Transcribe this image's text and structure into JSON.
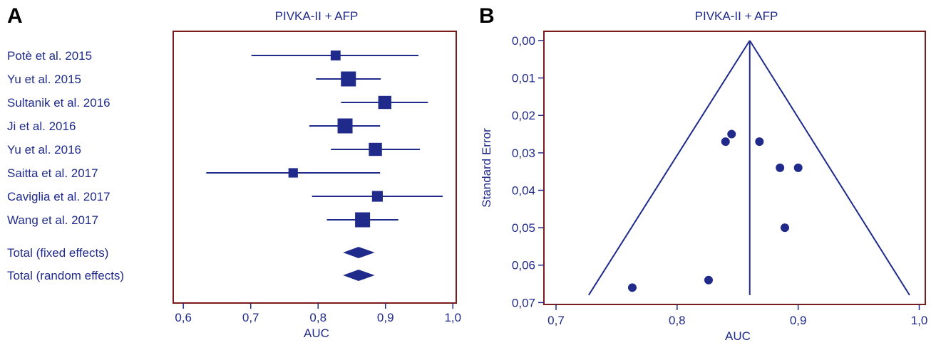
{
  "panels": {
    "a_label": "A",
    "b_label": "B"
  },
  "colors": {
    "frame": "#7b1b1b",
    "ink": "#1f2a8a"
  },
  "chart_data": [
    {
      "type": "forest",
      "title": "PIVKA-II + AFP",
      "xlabel": "AUC",
      "xlim": [
        0.585,
        1.005
      ],
      "xticks": [
        "0,6",
        "0,7",
        "0,8",
        "0,9",
        "1,0"
      ],
      "xtick_values": [
        0.6,
        0.7,
        0.8,
        0.9,
        1.0
      ],
      "studies": [
        {
          "label": "Potè et al. 2015",
          "auc": 0.826,
          "ci": [
            0.701,
            0.949
          ],
          "weight": 0.45
        },
        {
          "label": "Yu et al. 2015",
          "auc": 0.845,
          "ci": [
            0.797,
            0.893
          ],
          "weight": 1.0
        },
        {
          "label": "Sultanik et al. 2016",
          "auc": 0.899,
          "ci": [
            0.834,
            0.963
          ],
          "weight": 0.8
        },
        {
          "label": "Ji et al. 2016",
          "auc": 0.84,
          "ci": [
            0.787,
            0.892
          ],
          "weight": 1.0
        },
        {
          "label": "Yu et al. 2016",
          "auc": 0.885,
          "ci": [
            0.819,
            0.951
          ],
          "weight": 0.8
        },
        {
          "label": "Saitta et al. 2017",
          "auc": 0.763,
          "ci": [
            0.634,
            0.892
          ],
          "weight": 0.4
        },
        {
          "label": "Caviglia et al. 2017",
          "auc": 0.888,
          "ci": [
            0.791,
            0.985
          ],
          "weight": 0.55
        },
        {
          "label": "Wang et al. 2017",
          "auc": 0.866,
          "ci": [
            0.813,
            0.919
          ],
          "weight": 1.0
        }
      ],
      "totals": [
        {
          "label": "Total (fixed effects)",
          "auc": 0.86,
          "ci": [
            0.837,
            0.884
          ]
        },
        {
          "label": "Total (random effects)",
          "auc": 0.86,
          "ci": [
            0.837,
            0.884
          ]
        }
      ]
    },
    {
      "type": "funnel",
      "title": "PIVKA-II + AFP",
      "xlabel": "AUC",
      "ylabel": "Standard Error",
      "xlim": [
        0.69,
        1.005
      ],
      "ylim": [
        0.0,
        0.0705
      ],
      "xticks": [
        "0,7",
        "0,8",
        "0,9",
        "1,0"
      ],
      "xtick_values": [
        0.7,
        0.8,
        0.9,
        1.0
      ],
      "yticks": [
        "0,00",
        "0,01",
        "0,02",
        "0,03",
        "0,04",
        "0,05",
        "0,06",
        "0,07"
      ],
      "ytick_values": [
        0.0,
        0.01,
        0.02,
        0.03,
        0.04,
        0.05,
        0.06,
        0.07
      ],
      "pooled_auc": 0.86,
      "funnel_left": [
        0.727,
        0.068
      ],
      "funnel_right": [
        0.992,
        0.068
      ],
      "points": [
        {
          "x": 0.845,
          "y": 0.025
        },
        {
          "x": 0.84,
          "y": 0.027
        },
        {
          "x": 0.868,
          "y": 0.027
        },
        {
          "x": 0.885,
          "y": 0.034
        },
        {
          "x": 0.9,
          "y": 0.034
        },
        {
          "x": 0.889,
          "y": 0.05
        },
        {
          "x": 0.826,
          "y": 0.064
        },
        {
          "x": 0.763,
          "y": 0.066
        }
      ]
    }
  ]
}
